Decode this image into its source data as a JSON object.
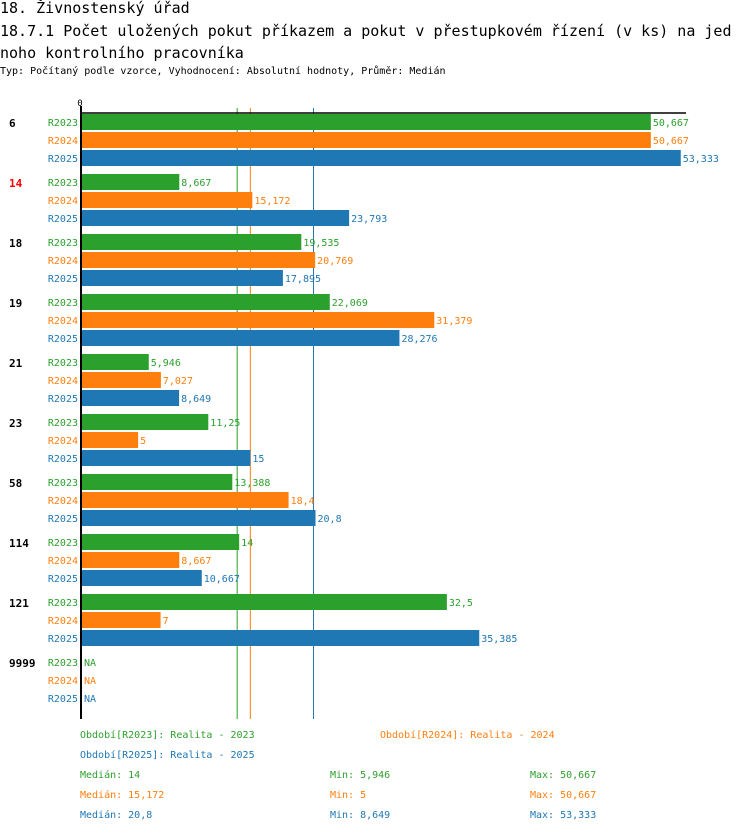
{
  "header": {
    "section_title": "18. Živnostenský úřad",
    "chart_title": "18.7.1 Počet uložených pokut příkazem a pokut v přestupkovém řízení (v ks) na jednoho kontrolního pracovníka",
    "subtitle": "Typ: Počítaný podle vzorce, Vyhodnocení: Absolutní hodnoty, Průměr: Medián"
  },
  "colors": {
    "R2023": "#2ca02c",
    "R2024": "#ff7f0e",
    "R2025": "#1f77b4",
    "highlight_category": "#ff0000",
    "axis": "#000000"
  },
  "chart_data": {
    "type": "bar",
    "orientation": "horizontal",
    "title": "18.7.1 Počet uložených pokut příkazem a pokut v přestupkovém řízení (v ks) na jednoho kontrolního pracovníka",
    "xlabel": "",
    "ylabel": "",
    "x_tick_labels": [
      "0"
    ],
    "xlim": [
      0,
      53.8
    ],
    "grid": false,
    "categories": [
      "6",
      "14",
      "18",
      "19",
      "21",
      "23",
      "58",
      "114",
      "121",
      "9999"
    ],
    "highlighted_category": "14",
    "series": [
      {
        "name": "R2023",
        "values": [
          50.667,
          8.667,
          19.535,
          22.069,
          5.946,
          11.25,
          13.388,
          14,
          32.5,
          null
        ],
        "labels": [
          "50,667",
          "8,667",
          "19,535",
          "22,069",
          "5,946",
          "11,25",
          "13,388",
          "14",
          "32,5",
          "NA"
        ]
      },
      {
        "name": "R2024",
        "values": [
          50.667,
          15.172,
          20.769,
          31.379,
          7.027,
          5,
          18.4,
          8.667,
          7,
          null
        ],
        "labels": [
          "50,667",
          "15,172",
          "20,769",
          "31,379",
          "7,027",
          "5",
          "18,4",
          "8,667",
          "7",
          "NA"
        ]
      },
      {
        "name": "R2025",
        "values": [
          53.333,
          23.793,
          17.895,
          28.276,
          8.649,
          15,
          20.8,
          10.667,
          35.385,
          null
        ],
        "labels": [
          "53,333",
          "23,793",
          "17,895",
          "28,276",
          "8,649",
          "15",
          "20,8",
          "10,667",
          "35,385",
          "NA"
        ]
      }
    ],
    "median_lines": [
      {
        "series": "R2023",
        "value": 14
      },
      {
        "series": "R2024",
        "value": 15.172
      },
      {
        "series": "R2025",
        "value": 20.8
      }
    ],
    "legend": {
      "placement": "bottom",
      "periods": [
        {
          "series": "R2023",
          "text": "Období[R2023]: Realita - 2023"
        },
        {
          "series": "R2024",
          "text": "Období[R2024]: Realita - 2024"
        },
        {
          "series": "R2025",
          "text": "Období[R2025]: Realita - 2025"
        }
      ],
      "stats": [
        {
          "series": "R2023",
          "median": "Medián: 14",
          "min": "Min: 5,946",
          "max": "Max: 50,667"
        },
        {
          "series": "R2024",
          "median": "Medián: 15,172",
          "min": "Min: 5",
          "max": "Max: 50,667"
        },
        {
          "series": "R2025",
          "median": "Medián: 20,8",
          "min": "Min: 8,649",
          "max": "Max: 53,333"
        }
      ]
    }
  }
}
